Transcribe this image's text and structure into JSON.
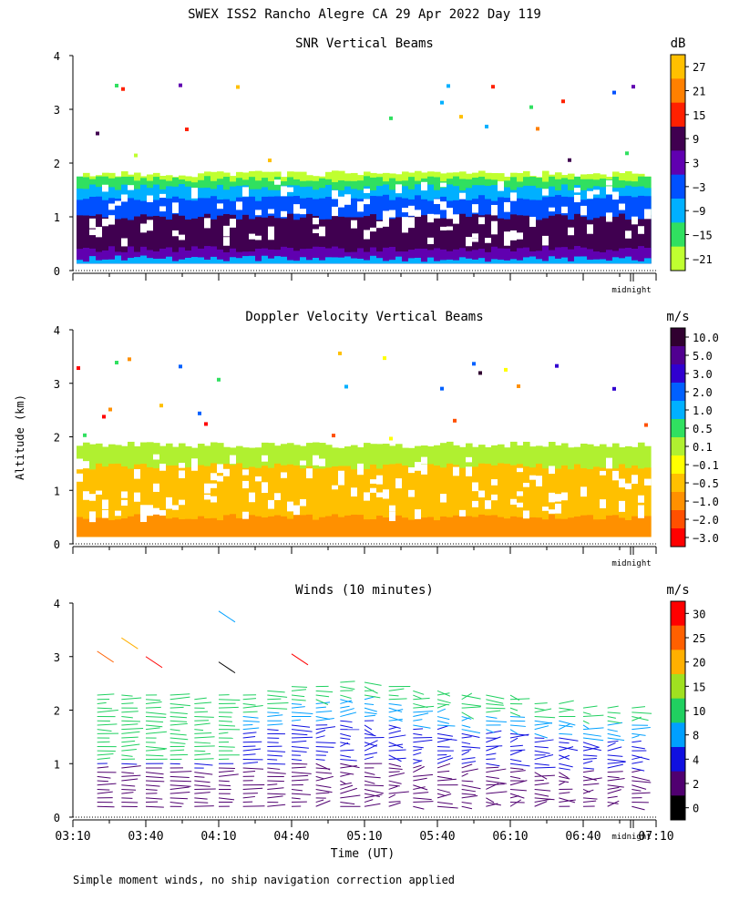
{
  "title": "SWEX ISS2 Rancho Alegre CA  29 Apr 2022 Day 119",
  "ylabel": "Altitude (km)",
  "xlabel": "Time (UT)",
  "footnote": "Simple moment winds, no ship navigation correction applied",
  "midnight_label": "midnight",
  "time_ticks": [
    "03:10",
    "03:40",
    "04:10",
    "04:40",
    "05:10",
    "05:40",
    "06:10",
    "06:40",
    "07:10"
  ],
  "chart_data": [
    {
      "type": "heatmap",
      "title": "SNR Vertical Beams",
      "units": "dB",
      "yticks": [
        "0",
        "1",
        "2",
        "3",
        "4"
      ],
      "ylim": [
        0,
        4
      ],
      "xlim": [
        "03:10",
        "07:10"
      ],
      "colorbar": {
        "labels": [
          "27",
          "21",
          "15",
          "9",
          "3",
          "−3",
          "−9",
          "−15",
          "−21"
        ],
        "colors": [
          "#ffc000",
          "#ff8000",
          "#ff2000",
          "#400050",
          "#6000b0",
          "#0050ff",
          "#00b0ff",
          "#30e060",
          "#c0ff30"
        ]
      },
      "profile": [
        {
          "top_km": 1.8,
          "color": "#c0ff30"
        },
        {
          "top_km": 1.7,
          "color": "#30e060"
        },
        {
          "top_km": 1.55,
          "color": "#00b0ff"
        },
        {
          "top_km": 1.35,
          "color": "#0050ff"
        },
        {
          "top_km": 1.0,
          "color": "#400050"
        },
        {
          "top_km": 0.4,
          "color": "#6000b0"
        },
        {
          "top_km": 0.22,
          "color": "#00b0ff"
        }
      ]
    },
    {
      "type": "heatmap",
      "title": "Doppler Velocity Vertical Beams",
      "units": "m/s",
      "yticks": [
        "0",
        "1",
        "2",
        "3",
        "4"
      ],
      "ylim": [
        0,
        4
      ],
      "xlim": [
        "03:10",
        "07:10"
      ],
      "colorbar": {
        "labels": [
          "10.0",
          "5.0",
          "3.0",
          "2.0",
          "1.0",
          "0.5",
          "0.1",
          "−0.1",
          "−0.5",
          "−1.0",
          "−2.0",
          "−3.0"
        ],
        "colors": [
          "#300030",
          "#500090",
          "#3000d0",
          "#0060ff",
          "#00b0ff",
          "#30e060",
          "#b0f030",
          "#ffff00",
          "#ffc000",
          "#ff9000",
          "#ff5000",
          "#ff0000"
        ]
      },
      "profile": [
        {
          "top_km": 1.85,
          "color": "#b0f030"
        },
        {
          "top_km": 1.45,
          "color": "#ffc000"
        },
        {
          "top_km": 0.5,
          "color": "#ff9000"
        }
      ]
    },
    {
      "type": "scatter",
      "title": "Winds (10 minutes)",
      "units": "m/s",
      "yticks": [
        "0",
        "1",
        "2",
        "3",
        "4"
      ],
      "ylim": [
        0,
        4
      ],
      "xlim": [
        "03:10",
        "07:10"
      ],
      "colorbar": {
        "labels": [
          "30",
          "25",
          "20",
          "15",
          "10",
          "8",
          "4",
          "2",
          "0"
        ],
        "colors": [
          "#ff0000",
          "#ff6000",
          "#ffb000",
          "#a0e020",
          "#20d060",
          "#00a0ff",
          "#1010e0",
          "#500070",
          "#000000"
        ]
      },
      "profile_times": [
        "03:20",
        "03:30",
        "03:40",
        "03:50",
        "04:00",
        "04:10",
        "04:20",
        "04:30",
        "04:40",
        "04:50",
        "05:00",
        "05:10",
        "05:20",
        "05:30",
        "05:40",
        "05:50",
        "06:00",
        "06:10",
        "06:20",
        "06:30",
        "06:40",
        "06:50",
        "07:00"
      ],
      "profile_top_km": [
        2.3,
        2.3,
        2.3,
        2.3,
        2.25,
        2.3,
        2.3,
        2.4,
        2.5,
        2.5,
        2.6,
        2.6,
        2.5,
        2.4,
        2.4,
        2.3,
        2.3,
        2.3,
        2.2,
        2.2,
        2.1,
        2.1,
        2.1
      ]
    }
  ]
}
